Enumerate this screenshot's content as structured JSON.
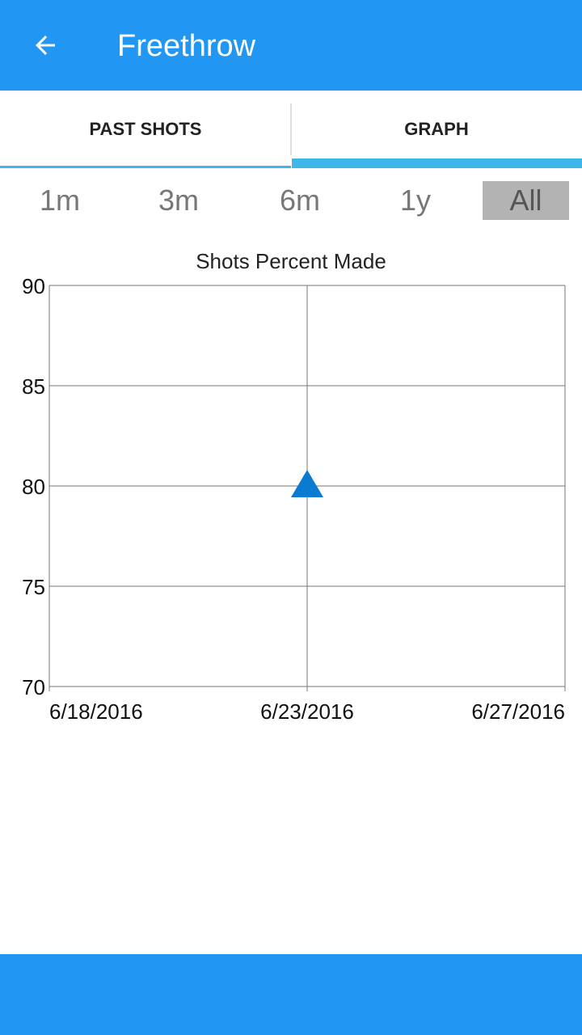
{
  "appbar": {
    "title": "Freethrow",
    "back_icon": "arrow-back-icon",
    "color": "#2196F3"
  },
  "tabs": [
    {
      "label": "PAST SHOTS",
      "selected": false
    },
    {
      "label": "GRAPH",
      "selected": true
    }
  ],
  "ranges": [
    {
      "label": "1m",
      "selected": false
    },
    {
      "label": "3m",
      "selected": false
    },
    {
      "label": "6m",
      "selected": false
    },
    {
      "label": "1y",
      "selected": false
    },
    {
      "label": "All",
      "selected": true
    }
  ],
  "chart_data": {
    "type": "scatter",
    "title": "Shots Percent Made",
    "xlabel": "",
    "ylabel": "",
    "x_ticks": [
      "6/18/2016",
      "6/23/2016",
      "6/27/2016"
    ],
    "ylim": [
      70,
      90
    ],
    "y_ticks": [
      90,
      85,
      80,
      75,
      70
    ],
    "grid": true,
    "marker": "triangle",
    "marker_color": "#0A7BD0",
    "series": [
      {
        "x": [
          "6/23/2016"
        ],
        "y": [
          80
        ]
      }
    ]
  }
}
